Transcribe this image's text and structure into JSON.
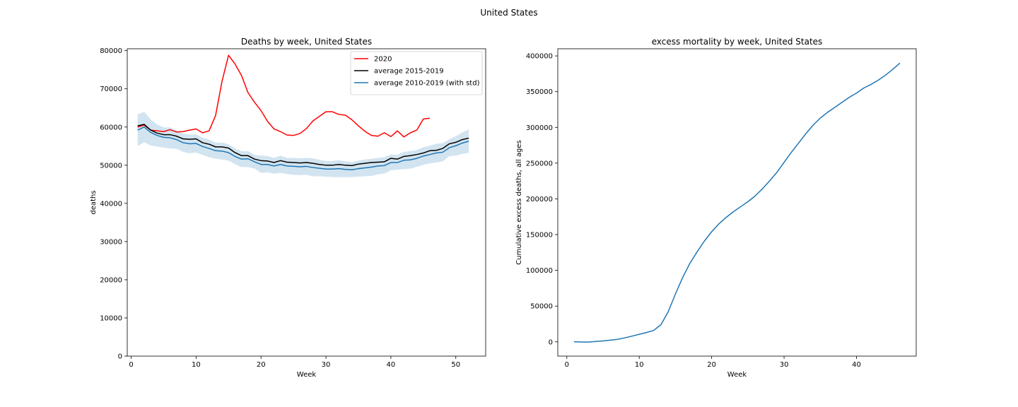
{
  "figure": {
    "suptitle": "United States"
  },
  "chart_data": [
    {
      "type": "line",
      "title": "Deaths by week, United States",
      "xlabel": "Week",
      "ylabel": "deaths",
      "xlim": [
        -0.6,
        54.6
      ],
      "ylim": [
        0,
        80500
      ],
      "xticks": [
        0,
        10,
        20,
        30,
        40,
        50
      ],
      "yticks": [
        0,
        10000,
        20000,
        30000,
        40000,
        50000,
        60000,
        70000,
        80000
      ],
      "legend": "upper-right",
      "grid": false,
      "series": [
        {
          "name": "2020",
          "color": "#ff0000",
          "x": [
            1,
            2,
            3,
            4,
            5,
            6,
            7,
            8,
            9,
            10,
            11,
            12,
            13,
            14,
            15,
            16,
            17,
            18,
            19,
            20,
            21,
            22,
            23,
            24,
            25,
            26,
            27,
            28,
            29,
            30,
            31,
            32,
            33,
            34,
            35,
            36,
            37,
            38,
            39,
            40,
            41,
            42,
            43,
            44,
            45,
            46
          ],
          "values": [
            60000,
            60500,
            59200,
            59000,
            58800,
            59300,
            58700,
            58800,
            59200,
            59500,
            58500,
            59000,
            63000,
            72000,
            78800,
            76500,
            73500,
            69000,
            66500,
            64300,
            61500,
            59500,
            58800,
            57900,
            57800,
            58300,
            59600,
            61600,
            62800,
            64000,
            64000,
            63300,
            63100,
            61900,
            60300,
            58900,
            57800,
            57600,
            58500,
            57500,
            59000,
            57400,
            58500,
            59200,
            62100,
            62300
          ]
        },
        {
          "name": "average 2015-2019",
          "color": "#000000",
          "x": [
            1,
            2,
            3,
            4,
            5,
            6,
            7,
            8,
            9,
            10,
            11,
            12,
            13,
            14,
            15,
            16,
            17,
            18,
            19,
            20,
            21,
            22,
            23,
            24,
            25,
            26,
            27,
            28,
            29,
            30,
            31,
            32,
            33,
            34,
            35,
            36,
            37,
            38,
            39,
            40,
            41,
            42,
            43,
            44,
            45,
            46,
            47,
            48,
            49,
            50,
            51,
            52
          ],
          "values": [
            60300,
            60700,
            59200,
            58400,
            58000,
            58000,
            57600,
            56900,
            56800,
            56900,
            55900,
            55500,
            54800,
            54800,
            54500,
            53300,
            52500,
            52500,
            51600,
            51200,
            51100,
            50700,
            51200,
            50800,
            50700,
            50600,
            50700,
            50500,
            50200,
            50000,
            50000,
            50200,
            50000,
            49900,
            50300,
            50500,
            50700,
            50800,
            50900,
            51800,
            51600,
            52300,
            52500,
            52800,
            53200,
            53800,
            53900,
            54400,
            55600,
            56000,
            56700,
            57100
          ]
        },
        {
          "name": "average 2010-2019 (with std)",
          "color": "#1f77b4",
          "band_color": "#1f77b4",
          "x": [
            1,
            2,
            3,
            4,
            5,
            6,
            7,
            8,
            9,
            10,
            11,
            12,
            13,
            14,
            15,
            16,
            17,
            18,
            19,
            20,
            21,
            22,
            23,
            24,
            25,
            26,
            27,
            28,
            29,
            30,
            31,
            32,
            33,
            34,
            35,
            36,
            37,
            38,
            39,
            40,
            41,
            42,
            43,
            44,
            45,
            46,
            47,
            48,
            49,
            50,
            51,
            52
          ],
          "values": [
            59200,
            60000,
            58600,
            57800,
            57300,
            57200,
            56700,
            55900,
            55600,
            55700,
            54900,
            54400,
            53800,
            53700,
            53300,
            52300,
            51600,
            51700,
            50900,
            50200,
            50200,
            49800,
            50200,
            49800,
            49700,
            49600,
            49700,
            49400,
            49200,
            49000,
            49000,
            49100,
            48900,
            48800,
            49100,
            49300,
            49500,
            49800,
            49900,
            50700,
            50700,
            51300,
            51400,
            51800,
            52400,
            52800,
            53200,
            53400,
            54600,
            55100,
            55800,
            56300
          ],
          "lower": [
            55000,
            56000,
            55200,
            54900,
            54600,
            54400,
            54300,
            53500,
            53100,
            53300,
            52700,
            52100,
            51700,
            51500,
            51200,
            50300,
            49500,
            49500,
            49100,
            48000,
            48100,
            47800,
            48000,
            47700,
            47500,
            47400,
            47500,
            47100,
            47100,
            47000,
            46900,
            46900,
            46900,
            46900,
            47000,
            47100,
            47200,
            47600,
            47800,
            48700,
            48800,
            49000,
            49100,
            49600,
            50100,
            50500,
            50700,
            51000,
            52400,
            52500,
            53000,
            53200
          ],
          "upper": [
            63300,
            64000,
            62000,
            60700,
            59900,
            59900,
            59200,
            58300,
            58000,
            58100,
            57200,
            56700,
            55900,
            55900,
            55500,
            54400,
            53700,
            53700,
            52700,
            52500,
            52400,
            51900,
            52500,
            51900,
            51900,
            51800,
            51900,
            51800,
            51400,
            51100,
            51100,
            51300,
            51000,
            50800,
            51200,
            51500,
            51700,
            51900,
            52100,
            52800,
            52700,
            53500,
            53700,
            54000,
            54700,
            55100,
            55600,
            55800,
            56800,
            57600,
            58600,
            59400
          ]
        }
      ]
    },
    {
      "type": "line",
      "title": "excess mortality by week, United States",
      "xlabel": "Week",
      "ylabel": "Cumulative excess deaths, all ages",
      "xlim": [
        -1.25,
        48.25
      ],
      "ylim": [
        -20000,
        410000
      ],
      "xticks": [
        0,
        10,
        20,
        30,
        40
      ],
      "yticks": [
        0,
        50000,
        100000,
        150000,
        200000,
        250000,
        300000,
        350000,
        400000
      ],
      "grid": false,
      "series": [
        {
          "color": "#1f77b4",
          "x": [
            1,
            2,
            3,
            4,
            5,
            6,
            7,
            8,
            9,
            10,
            11,
            12,
            13,
            14,
            15,
            16,
            17,
            18,
            19,
            20,
            21,
            22,
            23,
            24,
            25,
            26,
            27,
            28,
            29,
            30,
            31,
            32,
            33,
            34,
            35,
            36,
            37,
            38,
            39,
            40,
            41,
            42,
            43,
            44,
            45,
            46
          ],
          "values": [
            0,
            -200,
            -300,
            500,
            1200,
            2400,
            3500,
            5500,
            8000,
            10500,
            13000,
            16000,
            24000,
            42000,
            67000,
            90000,
            110000,
            126000,
            141000,
            154000,
            165000,
            174000,
            182000,
            189000,
            196000,
            204000,
            214000,
            225000,
            237000,
            251000,
            265000,
            278000,
            291000,
            303000,
            313000,
            321000,
            328000,
            335000,
            342000,
            348000,
            355000,
            360000,
            366000,
            373000,
            381000,
            390000
          ]
        }
      ]
    }
  ]
}
